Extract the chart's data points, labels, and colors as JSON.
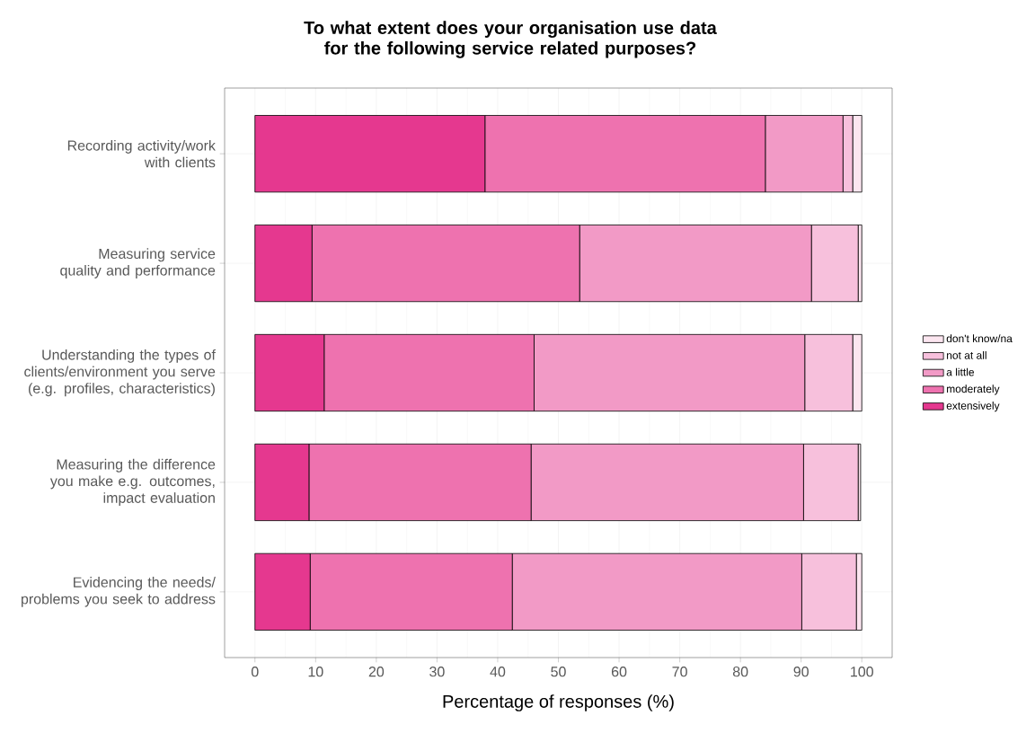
{
  "chart_data": {
    "type": "bar",
    "orientation": "horizontal",
    "stacked": true,
    "title": "To what extent does your organisation use data for the following service related purposes?",
    "xlabel": "Percentage of responses (%)",
    "categories": [
      "Recording activity/work with clients",
      "Measuring service quality and performance",
      "Understanding the types of clients/environment you serve (e.g. profiles, characteristics)",
      "Measuring the difference you make e.g. outcomes, impact evaluation",
      "Evidencing the needs/ problems you seek to address"
    ],
    "series": [
      {
        "name": "extensively",
        "color": "#e5388f",
        "values": [
          37.9,
          9.4,
          11.4,
          8.9,
          9.1
        ]
      },
      {
        "name": "moderately",
        "color": "#ee72af",
        "values": [
          46.2,
          44.1,
          34.6,
          36.6,
          33.3
        ]
      },
      {
        "name": "a little",
        "color": "#f29ac6",
        "values": [
          12.8,
          38.2,
          44.6,
          44.9,
          47.7
        ]
      },
      {
        "name": "not at all",
        "color": "#f7c0dc",
        "values": [
          1.6,
          7.7,
          7.9,
          9.0,
          9.0
        ]
      },
      {
        "name": "don't know/na",
        "color": "#fce6f0",
        "values": [
          1.5,
          0.6,
          1.5,
          0.4,
          0.9
        ]
      }
    ],
    "xlim": [
      -5,
      105
    ],
    "xticks": [
      0,
      10,
      20,
      30,
      40,
      50,
      60,
      70,
      80,
      90,
      100
    ],
    "grid": true,
    "legend": "right"
  }
}
